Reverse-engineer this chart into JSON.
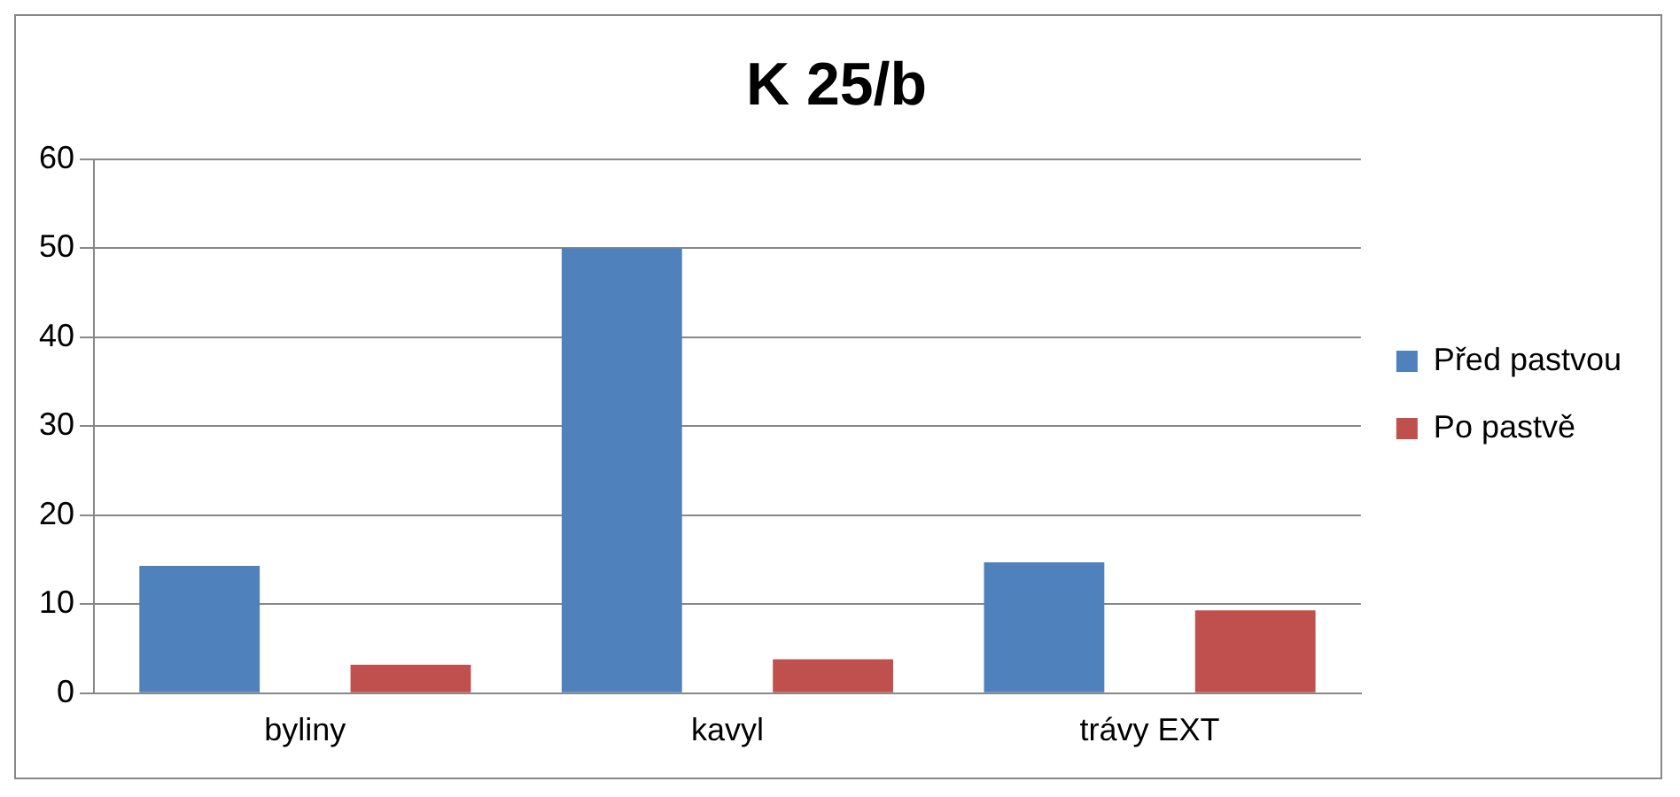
{
  "chart_data": {
    "type": "bar",
    "title": "K 25/b",
    "categories": [
      "byliny",
      "kavyl",
      "trávy EXT"
    ],
    "series": [
      {
        "name": "Před pastvou",
        "color": "#4f81bd",
        "values": [
          14.3,
          50,
          14.7
        ]
      },
      {
        "name": "Po pastvě",
        "color": "#c0504d",
        "values": [
          3.2,
          3.8,
          9.3
        ]
      }
    ],
    "ylim": [
      0,
      60
    ],
    "yticks": [
      0,
      10,
      20,
      30,
      40,
      50,
      60
    ],
    "grid": "y",
    "legend": "right"
  }
}
